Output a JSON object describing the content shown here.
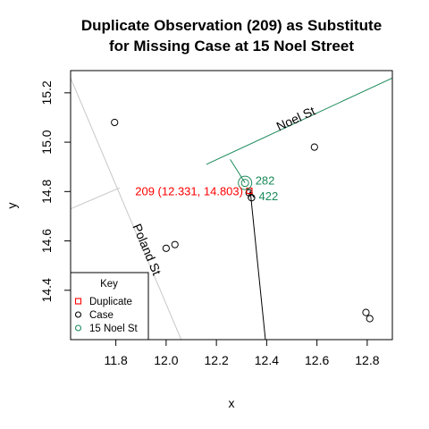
{
  "colors": {
    "duplicate": "#ff0000",
    "noel_st": "#1b8a5a",
    "case": "#000000",
    "road": "#c8c8c8",
    "fill": "#ffffff"
  },
  "chart_data": {
    "type": "scatter",
    "title": [
      "Duplicate Observation (209) as Substitute",
      "for Missing Case at 15 Noel Street"
    ],
    "xlabel": "x",
    "ylabel": "y",
    "xlim": [
      11.62,
      12.9
    ],
    "ylim": [
      14.2,
      15.29
    ],
    "xticks": [
      "11.8",
      "12.0",
      "12.2",
      "12.4",
      "12.6",
      "12.8"
    ],
    "yticks": [
      "14.4",
      "14.6",
      "14.8",
      "15.0",
      "15.2"
    ],
    "xtick_values": [
      11.8,
      12.0,
      12.2,
      12.4,
      12.6,
      12.8
    ],
    "ytick_values": [
      14.4,
      14.6,
      14.8,
      15.0,
      15.2
    ],
    "grid": false,
    "cases": [
      {
        "x": 11.795,
        "y": 15.08
      },
      {
        "x": 12.0,
        "y": 14.57
      },
      {
        "x": 12.035,
        "y": 14.585
      },
      {
        "x": 12.59,
        "y": 14.98
      },
      {
        "x": 12.795,
        "y": 14.31
      },
      {
        "x": 12.81,
        "y": 14.285
      },
      {
        "x": 12.33,
        "y": 14.795
      },
      {
        "x": 12.34,
        "y": 14.775
      }
    ],
    "duplicate": {
      "x": 12.331,
      "y": 14.803,
      "label": "209 (12.331, 14.803)"
    },
    "noel_st_point": {
      "x": 12.314,
      "y": 14.835
    },
    "case_labels": [
      {
        "text": "282",
        "x": 12.33,
        "y": 14.835
      },
      {
        "text": "422",
        "x": 12.34,
        "y": 14.775
      }
    ],
    "roads": {
      "noel_st": {
        "name": "Noel St",
        "from": [
          12.16,
          14.91
        ],
        "to": [
          12.9,
          15.26
        ]
      },
      "noel_st_connector": {
        "from": [
          12.255,
          14.93
        ],
        "to": [
          12.314,
          14.835
        ]
      },
      "poland_st": {
        "name": "Poland St",
        "from": [
          11.62,
          15.26
        ],
        "to": [
          12.06,
          14.2
        ]
      },
      "poland_st_connector": {
        "from": [
          11.62,
          14.73
        ],
        "to": [
          11.815,
          14.815
        ]
      },
      "case_arrow": {
        "from": [
          12.395,
          14.2
        ],
        "to": [
          12.335,
          14.8
        ]
      }
    },
    "legend": {
      "position": "bottom-left",
      "title": "Key",
      "entries": [
        {
          "label": "Duplicate",
          "symbol": "square",
          "color": "#ff0000"
        },
        {
          "label": "Case",
          "symbol": "circle",
          "color": "#000000"
        },
        {
          "label": "15 Noel St",
          "symbol": "circle",
          "color": "#1b8a5a"
        }
      ]
    }
  }
}
